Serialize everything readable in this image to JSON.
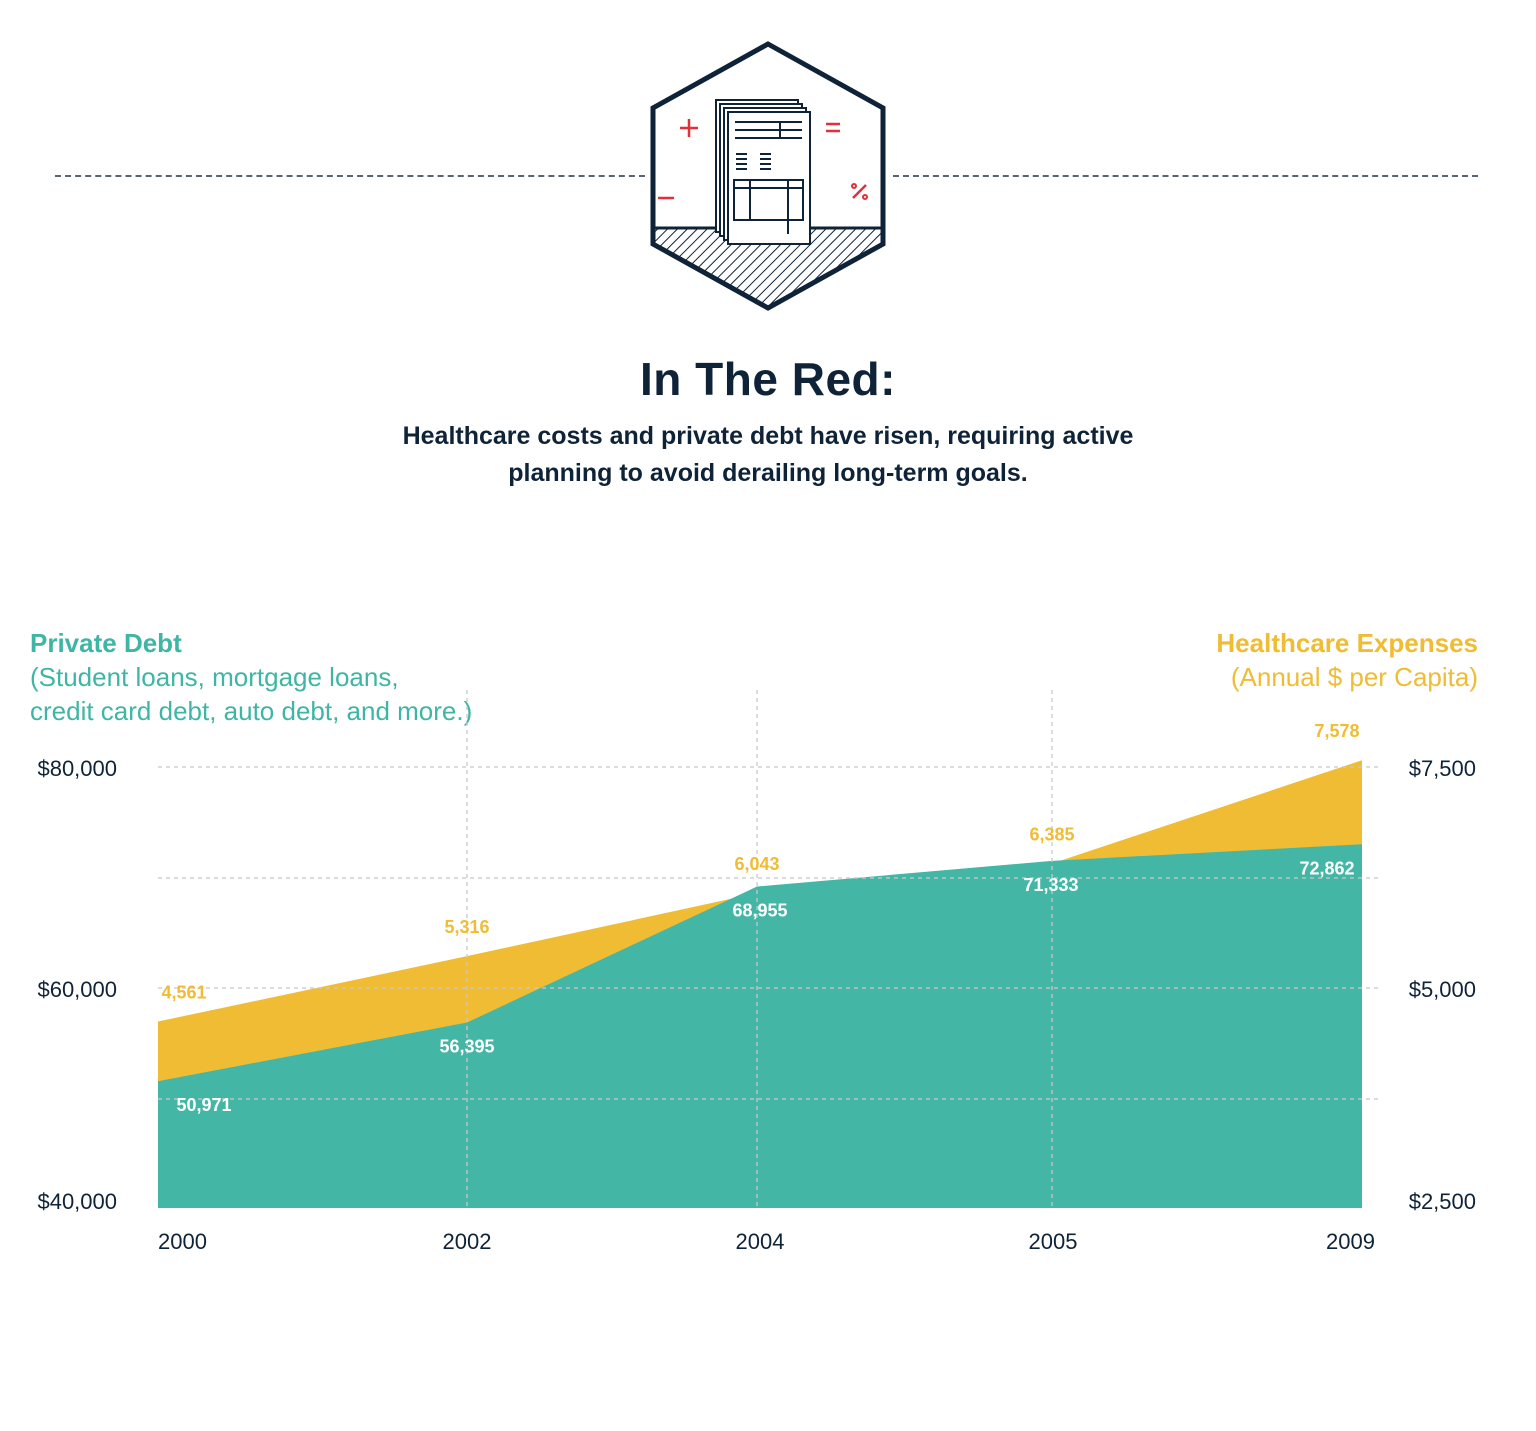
{
  "header": {
    "title": "In The Red:",
    "subtitle": "Healthcare costs and private debt have risen, requiring active planning to avoid derailing long-term goals."
  },
  "emblem": {
    "icon": "financial-document-icon",
    "symbols": [
      "+",
      "=",
      "−",
      "%"
    ]
  },
  "colors": {
    "teal": "#44b6a6",
    "yellow": "#f0bc34",
    "navy": "#0f2338",
    "red": "#e0303a"
  },
  "chart_data": {
    "type": "area",
    "x": [
      "2000",
      "2002",
      "2004",
      "2005",
      "2009"
    ],
    "series": [
      {
        "name": "Private Debt",
        "axis": "left",
        "color": "#44b6a6",
        "values": [
          50971,
          56395,
          68955,
          71333,
          72862
        ],
        "labels": [
          "50,971",
          "56,395",
          "68,955",
          "71,333",
          "72,862"
        ]
      },
      {
        "name": "Healthcare Expenses",
        "axis": "right",
        "color": "#f0bc34",
        "values": [
          4561,
          5316,
          6043,
          6385,
          7578
        ],
        "labels": [
          "4,561",
          "5,316",
          "6,043",
          "6,385",
          "7,578"
        ]
      }
    ],
    "left_axis": {
      "title": "Private Debt",
      "subtitle_lines": [
        "(Student loans, mortgage loans,",
        "credit card debt, auto debt, and more.)"
      ],
      "ticks": [
        "$80,000",
        "$60,000",
        "$40,000"
      ],
      "range": [
        40000,
        80000
      ]
    },
    "right_axis": {
      "title": "Healthcare Expenses",
      "subtitle_lines": [
        "(Annual $ per Capita)"
      ],
      "ticks": [
        "$7,500",
        "$5,000",
        "$2,500"
      ],
      "range": [
        2500,
        7500
      ]
    },
    "grid": true
  }
}
